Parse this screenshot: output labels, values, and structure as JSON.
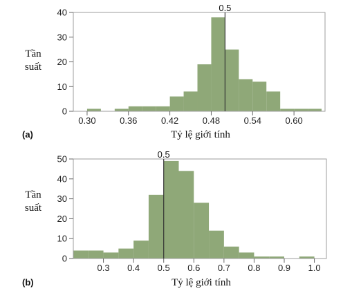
{
  "chart_data": [
    {
      "type": "bar",
      "panel": "(a)",
      "ylabel": [
        "Tần",
        "suất"
      ],
      "xlabel": "Tỷ lệ giới tính",
      "ylim": [
        0,
        40
      ],
      "xlim": [
        0.28,
        0.645
      ],
      "yticks": [
        0,
        10,
        20,
        30,
        40
      ],
      "xticks": [
        0.3,
        0.36,
        0.42,
        0.48,
        0.54,
        0.6
      ],
      "xtick_labels": [
        "0.30",
        "0.36",
        "0.42",
        "0.48",
        "0.54",
        "0.60"
      ],
      "bin_width": 0.02,
      "bins_start": [
        0.28,
        0.3,
        0.32,
        0.34,
        0.36,
        0.38,
        0.4,
        0.42,
        0.44,
        0.46,
        0.48,
        0.5,
        0.52,
        0.54,
        0.56,
        0.58,
        0.6,
        0.62
      ],
      "values": [
        0,
        1,
        0,
        1,
        2,
        2,
        2,
        6,
        8,
        19,
        38,
        25,
        13,
        12,
        8,
        1,
        1,
        1
      ],
      "reference_line": {
        "x": 0.5,
        "label": "0.5"
      },
      "bar_color": "#8fa878",
      "frame_color": "#9e9e9e"
    },
    {
      "type": "bar",
      "panel": "(b)",
      "ylabel": [
        "Tần",
        "suất"
      ],
      "xlabel": "Tỷ lệ giới tính",
      "ylim": [
        0,
        50
      ],
      "xlim": [
        0.2,
        1.04
      ],
      "yticks": [
        0,
        10,
        20,
        30,
        40,
        50
      ],
      "xticks": [
        0.3,
        0.4,
        0.5,
        0.6,
        0.7,
        0.8,
        0.9,
        1.0
      ],
      "xtick_labels": [
        "0.3",
        "0.4",
        "0.5",
        "0.6",
        "0.7",
        "0.8",
        "0.9",
        "1.0"
      ],
      "bin_width": 0.05,
      "bins_start": [
        0.2,
        0.25,
        0.3,
        0.35,
        0.4,
        0.45,
        0.5,
        0.55,
        0.6,
        0.65,
        0.7,
        0.75,
        0.8,
        0.85,
        0.9,
        0.95,
        1.0
      ],
      "values": [
        4,
        4,
        3,
        5,
        9,
        32,
        49,
        44,
        28,
        14,
        6,
        3,
        1,
        1,
        0,
        1,
        0
      ],
      "reference_line": {
        "x": 0.5,
        "label": "0.5"
      },
      "bar_color": "#8fa878",
      "frame_color": "#9e9e9e"
    }
  ]
}
